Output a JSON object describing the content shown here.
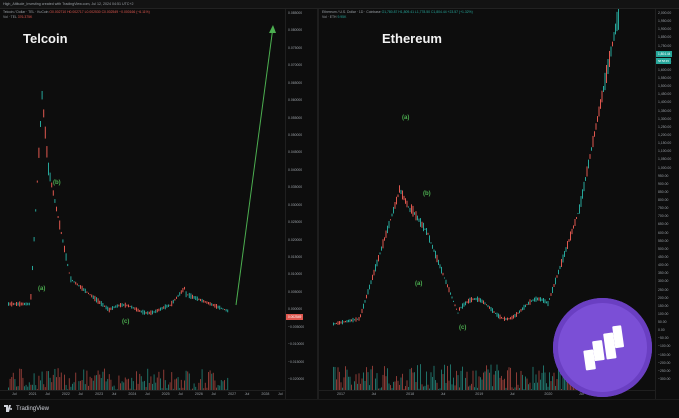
{
  "header": {
    "caption": "High_Altitude_Investing created with TradingView.com, Jul 12, 2024 04:51 UTC+2"
  },
  "left_pane": {
    "title": "Telcoin",
    "legend_line1": "Telcoin / Dollar · TEL · KuCoin",
    "legend_values": "O0.002710 H0.002717 L0.002530 C0.002549 −0.000166 (−6.11%)",
    "legend_line2": "Vol · TEL",
    "legend_vol": "376.375K",
    "price_tag": "0.002549",
    "y_ticks": [
      "0.085000",
      "0.080000",
      "0.075000",
      "0.070000",
      "0.065000",
      "0.060000",
      "0.055000",
      "0.050000",
      "0.045000",
      "0.040000",
      "0.035000",
      "0.030000",
      "0.025000",
      "0.020000",
      "0.015000",
      "0.010000",
      "0.005000",
      "0.000000",
      "−0.005000",
      "−0.010000",
      "−0.015000",
      "−0.020000"
    ],
    "x_ticks": [
      "Jul",
      "2021",
      "Jul",
      "2022",
      "Jul",
      "2023",
      "Jul",
      "2024",
      "Jul",
      "2025",
      "Jul",
      "2026",
      "Jul",
      "2027",
      "Jul",
      "2028",
      "Jul"
    ],
    "wave_labels": {
      "a": "(a)",
      "b": "(b)",
      "c": "(c)"
    }
  },
  "right_pane": {
    "title": "Ethereum",
    "legend_line1": "Ethereum / U.S. Dollar · 1D · Coinbase",
    "legend_values": "O1,780.87 H1,809.41 L1,778.50 C1,804.44 +23.57 (+1.32%)",
    "legend_line2": "Vol · ETH",
    "legend_vol": "9.95K",
    "price_tag": "1,804.44",
    "price_tag_sub": "58:58:45",
    "y_ticks": [
      "2,000.00",
      "1,950.00",
      "1,900.00",
      "1,850.00",
      "1,750.00",
      "1,700.00",
      "1,650.00",
      "1,600.00",
      "1,550.00",
      "1,500.00",
      "1,450.00",
      "1,400.00",
      "1,350.00",
      "1,300.00",
      "1,250.00",
      "1,200.00",
      "1,150.00",
      "1,100.00",
      "1,050.00",
      "1,000.00",
      "950.00",
      "900.00",
      "850.00",
      "800.00",
      "750.00",
      "700.00",
      "650.00",
      "600.00",
      "550.00",
      "500.00",
      "450.00",
      "400.00",
      "350.00",
      "300.00",
      "250.00",
      "200.00",
      "150.00",
      "100.00",
      "50.00",
      "0.00",
      "−50.00",
      "−100.00",
      "−150.00",
      "−200.00",
      "−250.00",
      "−300.00"
    ],
    "x_ticks": [
      "2017",
      "Jul",
      "2018",
      "Jul",
      "2019",
      "Jul",
      "2020",
      "Jul"
    ],
    "wave_labels": {
      "a": "(a)",
      "b": "(b)",
      "c": "(c)"
    }
  },
  "footer": {
    "brand": "TradingView"
  },
  "colors": {
    "up": "#26a69a",
    "down": "#e0584f",
    "arrow": "#4caf50",
    "coin": "#7b4fd6"
  },
  "icons": [
    "tradingview-logo-icon",
    "binance-coin-logo-icon"
  ]
}
